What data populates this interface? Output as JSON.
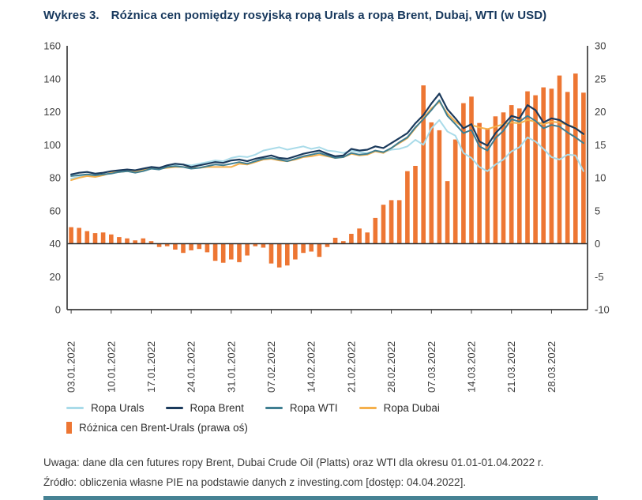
{
  "title": {
    "label": "Wykres 3.",
    "text": "Różnica cen pomiędzy rosyjską ropą Urals a ropą Brent, Dubaj, WTI (w USD)"
  },
  "notes": {
    "note": "Uwaga: dane dla cen futures ropy Brent, Dubai Crude Oil (Platts) oraz WTI dla okresu 01.01-01.04.2022 r.",
    "source": "Źródło: obliczenia własne PIE na podstawie danych z investing.com [dostęp: 04.04.2022]."
  },
  "colors": {
    "title_navy": "#16375c",
    "axis_line": "#3c3c3c",
    "axis_text": "#3d3d3d",
    "urals_line": "#A9DBE9",
    "brent_line": "#1B3A5C",
    "wti_line": "#3F7E91",
    "dubai_line": "#F5B04C",
    "bar_orange": "#ED7633",
    "bottom_rule_teal": "#468294"
  },
  "chart_data": {
    "type": "combo-line-bar",
    "n_points": 65,
    "x_tick_labels": [
      "03.01.2022",
      "10.01.2022",
      "17.01.2022",
      "24.01.2022",
      "31.01.2022",
      "07.02.2022",
      "14.02.2022",
      "21.02.2022",
      "28.02.2022",
      "07.03.2022",
      "14.03.2022",
      "21.03.2022",
      "28.03.2022"
    ],
    "left_axis": {
      "min": 0,
      "max": 160,
      "tick_step": 20,
      "ticks": [
        0,
        20,
        40,
        60,
        80,
        100,
        120,
        140,
        160
      ]
    },
    "right_axis": {
      "min": -10,
      "max": 30,
      "tick_step": 5,
      "ticks": [
        -10,
        -5,
        0,
        5,
        10,
        15,
        20,
        25,
        30
      ]
    },
    "grid": false,
    "legend_position": "bottom-left",
    "series": [
      {
        "name": "Ropa Urals",
        "type": "line",
        "axis": "left",
        "color": "#A9DBE9",
        "values": [
          79.5,
          80.5,
          81.5,
          81.0,
          81.5,
          83.0,
          83.5,
          84.0,
          83.5,
          84.5,
          86.0,
          85.5,
          86.5,
          87.5,
          88.0,
          87.5,
          88.5,
          89.5,
          90.5,
          90.0,
          92.0,
          93.0,
          92.5,
          94.0,
          96.5,
          97.5,
          98.5,
          97.0,
          98.0,
          99.0,
          97.5,
          98.5,
          96.5,
          96.0,
          95.0,
          96.5,
          95.5,
          95.0,
          96.0,
          95.5,
          97.0,
          97.5,
          99.0,
          103.0,
          100.0,
          110.0,
          115.0,
          108.0,
          105.5,
          95.0,
          92.0,
          86.5,
          84.0,
          88.0,
          91.0,
          96.0,
          98.5,
          104.5,
          102.0,
          97.5,
          92.5,
          91.0,
          94.0,
          93.5,
          84.0
        ]
      },
      {
        "name": "Ropa Brent",
        "type": "line",
        "axis": "left",
        "color": "#1B3A5C",
        "values": [
          82.0,
          83.0,
          83.5,
          82.5,
          83.0,
          84.0,
          84.5,
          85.0,
          84.5,
          85.5,
          86.5,
          86.0,
          87.5,
          88.5,
          88.0,
          86.5,
          87.5,
          88.5,
          89.5,
          89.0,
          90.5,
          91.0,
          90.0,
          91.5,
          92.5,
          93.5,
          92.0,
          91.5,
          93.0,
          94.5,
          95.5,
          96.5,
          94.5,
          93.0,
          93.5,
          97.5,
          96.5,
          97.0,
          99.0,
          98.0,
          101.0,
          104.0,
          107.0,
          113.0,
          118.0,
          125.0,
          131.0,
          121.5,
          116.0,
          110.0,
          112.5,
          102.0,
          99.5,
          107.0,
          112.0,
          117.5,
          116.0,
          124.0,
          121.0,
          113.5,
          116.0,
          115.0,
          112.0,
          110.0,
          106.5
        ]
      },
      {
        "name": "Ropa WTI",
        "type": "line",
        "axis": "left",
        "color": "#3F7E91",
        "values": [
          81.0,
          81.5,
          82.0,
          81.5,
          82.0,
          82.5,
          83.5,
          84.0,
          83.0,
          84.0,
          85.5,
          85.0,
          86.5,
          87.0,
          86.5,
          85.5,
          86.0,
          87.0,
          88.0,
          87.5,
          88.5,
          89.5,
          88.5,
          90.0,
          91.5,
          92.0,
          91.0,
          90.0,
          91.5,
          93.0,
          94.0,
          95.0,
          93.5,
          92.0,
          92.5,
          95.0,
          94.0,
          94.5,
          96.5,
          95.5,
          98.0,
          101.5,
          104.5,
          110.5,
          115.5,
          121.0,
          127.0,
          117.5,
          112.5,
          107.0,
          109.0,
          99.0,
          96.5,
          104.0,
          108.5,
          115.5,
          114.0,
          117.5,
          114.5,
          110.0,
          112.0,
          111.0,
          107.5,
          104.5,
          101.0
        ]
      },
      {
        "name": "Ropa Dubai",
        "type": "line",
        "axis": "left",
        "color": "#F5B04C",
        "values": [
          78.5,
          80.0,
          81.0,
          80.5,
          81.5,
          83.0,
          83.5,
          84.0,
          83.5,
          84.5,
          85.5,
          85.5,
          86.0,
          86.5,
          86.5,
          86.0,
          86.0,
          86.5,
          86.5,
          86.5,
          86.5,
          88.5,
          88.0,
          89.5,
          91.0,
          91.5,
          90.5,
          90.0,
          91.0,
          92.5,
          93.0,
          94.0,
          93.0,
          92.0,
          92.5,
          94.5,
          93.5,
          94.0,
          96.0,
          95.0,
          98.0,
          101.0,
          104.0,
          110.0,
          116.0,
          122.0,
          126.0,
          119.0,
          114.0,
          110.5,
          112.0,
          110.5,
          109.5,
          111.0,
          112.5,
          113.5,
          113.0,
          115.0,
          114.0,
          112.5,
          114.0,
          113.5,
          112.0,
          110.5,
          106.0
        ]
      },
      {
        "name": "Różnica cen Brent-Urals (prawa oś)",
        "type": "bar",
        "axis": "right",
        "color": "#ED7633",
        "values": [
          2.5,
          2.4,
          1.9,
          1.6,
          1.7,
          1.4,
          1.0,
          0.8,
          0.5,
          0.8,
          0.4,
          -0.5,
          -0.4,
          -0.9,
          -1.4,
          -1.0,
          -0.8,
          -1.3,
          -2.6,
          -2.9,
          -2.4,
          -2.8,
          -1.8,
          -0.4,
          -0.6,
          -3.0,
          -3.6,
          -3.3,
          -2.4,
          -1.4,
          -1.2,
          -2.0,
          -0.5,
          0.9,
          0.4,
          1.5,
          2.3,
          1.7,
          3.9,
          5.9,
          6.6,
          6.6,
          11.0,
          11.8,
          24.0,
          18.4,
          17.2,
          9.5,
          15.8,
          21.3,
          22.3,
          18.3,
          17.5,
          19.3,
          19.9,
          21.0,
          20.5,
          23.1,
          22.5,
          23.7,
          23.5,
          25.5,
          23.0,
          25.8,
          22.9
        ]
      }
    ]
  }
}
